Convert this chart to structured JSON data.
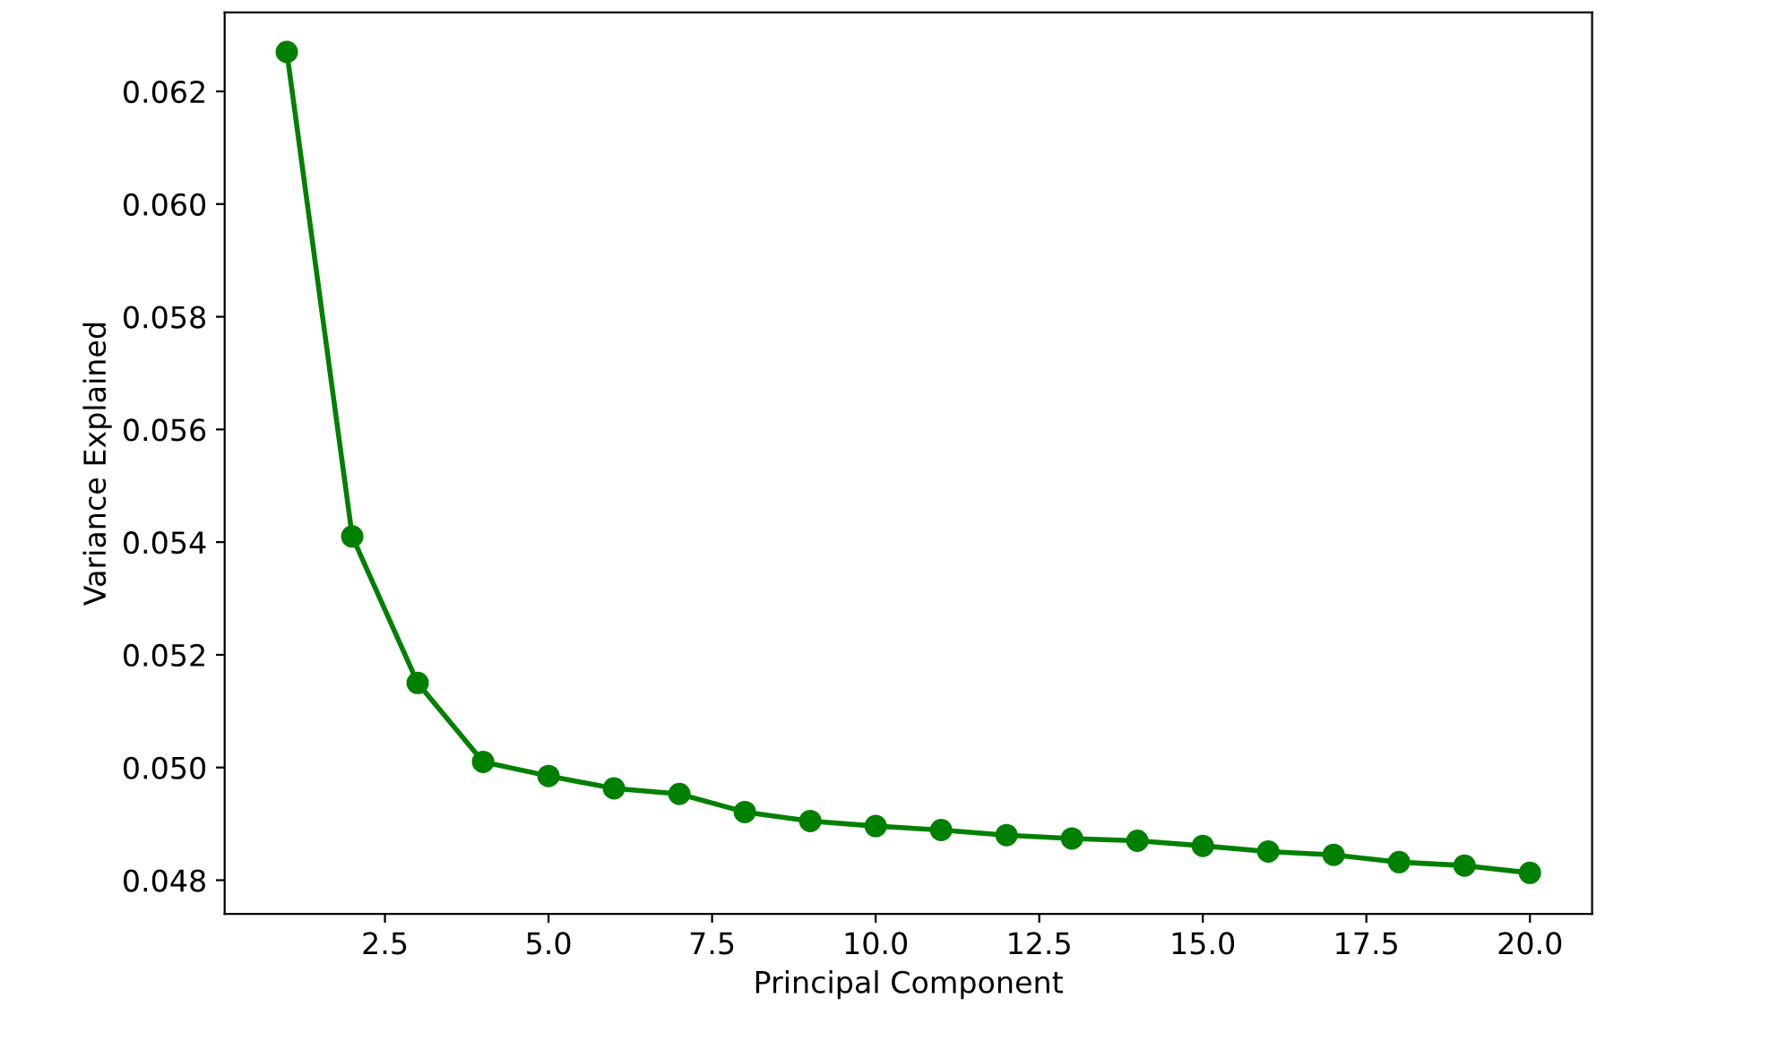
{
  "chart_data": {
    "type": "line",
    "xlabel": "Principal Component",
    "ylabel": "Variance Explained",
    "x": [
      1,
      2,
      3,
      4,
      5,
      6,
      7,
      8,
      9,
      10,
      11,
      12,
      13,
      14,
      15,
      16,
      17,
      18,
      19,
      20
    ],
    "series": [
      {
        "color": "#008000",
        "values": [
          0.0627,
          0.0541,
          0.0515,
          0.0501,
          0.04985,
          0.04963,
          0.04953,
          0.04921,
          0.04905,
          0.04896,
          0.04889,
          0.0488,
          0.04874,
          0.0487,
          0.04861,
          0.04851,
          0.04845,
          0.04832,
          0.04826,
          0.04813
        ]
      }
    ],
    "marker": "circle",
    "line_style": "solid",
    "grid": false,
    "legend": false,
    "xlim": [
      0.05,
      20.95
    ],
    "ylim": [
      0.0474,
      0.0634
    ],
    "xticks": [
      2.5,
      {
        "value": 5,
        "label": "5.0"
      },
      7.5,
      {
        "value": 10,
        "label": "10.0"
      },
      12.5,
      {
        "value": 15,
        "label": "15.0"
      },
      17.5,
      {
        "value": 20,
        "label": "20.0"
      }
    ],
    "yticks": [
      0.048,
      {
        "value": 0.05,
        "label": "0.050"
      },
      0.052,
      0.054,
      0.056,
      0.058,
      {
        "value": 0.06,
        "label": "0.060"
      },
      0.062
    ]
  }
}
